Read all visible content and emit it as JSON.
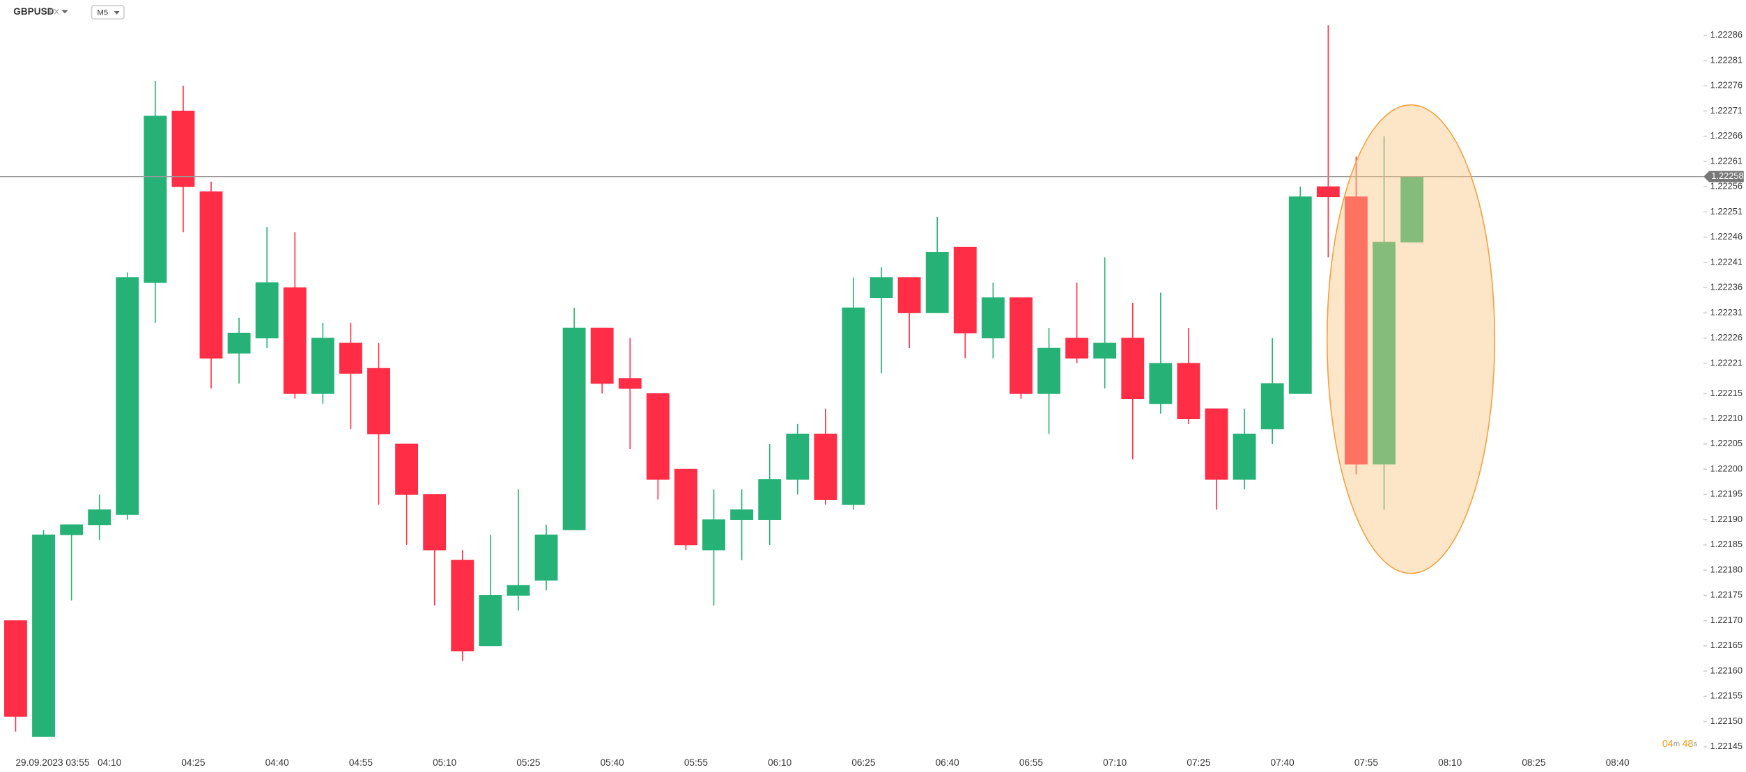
{
  "header": {
    "symbol": "GBPUSD",
    "market": "FX",
    "timeframe": "M5"
  },
  "chart_data": {
    "type": "candlestick",
    "date_label": "29.09.2023 03:55",
    "xlabels": [
      "04:10",
      "04:25",
      "04:40",
      "04:55",
      "05:10",
      "05:25",
      "05:40",
      "05:55",
      "06:10",
      "06:25",
      "06:40",
      "06:55",
      "07:10",
      "07:25",
      "07:40",
      "07:55",
      "08:10",
      "08:25",
      "08:40"
    ],
    "open": [
      1.2217,
      1.22147,
      1.22187,
      1.22189,
      1.22191,
      1.22237,
      1.22271,
      1.22255,
      1.22223,
      1.22226,
      1.22236,
      1.22215,
      1.22225,
      1.2222,
      1.22205,
      1.22195,
      1.22182,
      1.22165,
      1.22175,
      1.22178,
      1.22188,
      1.22228,
      1.22218,
      1.22215,
      1.222,
      1.22184,
      1.2219,
      1.2219,
      1.22198,
      1.22207,
      1.22193,
      1.22234,
      1.22238,
      1.22231,
      1.22244,
      1.22226,
      1.22234,
      1.22215,
      1.22226,
      1.22222,
      1.22226,
      1.22213,
      1.22221,
      1.22212,
      1.22198,
      1.22208,
      1.22215,
      1.22256,
      1.22254,
      1.22201,
      1.22245
    ],
    "high": [
      1.2217,
      1.22188,
      1.22189,
      1.22195,
      1.22239,
      1.22277,
      1.22276,
      1.22257,
      1.2223,
      1.22248,
      1.22247,
      1.22229,
      1.22229,
      1.22225,
      1.22205,
      1.22195,
      1.22184,
      1.22187,
      1.22196,
      1.22189,
      1.22232,
      1.22228,
      1.22226,
      1.22215,
      1.222,
      1.22196,
      1.22196,
      1.22205,
      1.22209,
      1.22212,
      1.22238,
      1.2224,
      1.22238,
      1.2225,
      1.22244,
      1.22237,
      1.22234,
      1.22228,
      1.22237,
      1.22242,
      1.22233,
      1.22235,
      1.22228,
      1.22212,
      1.22212,
      1.22226,
      1.22256,
      1.22288,
      1.22262,
      1.22266,
      1.22258
    ],
    "low": [
      1.22148,
      1.22147,
      1.22174,
      1.22186,
      1.2219,
      1.22229,
      1.22247,
      1.22216,
      1.22217,
      1.22224,
      1.22214,
      1.22213,
      1.22208,
      1.22193,
      1.22185,
      1.22173,
      1.22162,
      1.22165,
      1.22172,
      1.22176,
      1.22188,
      1.22215,
      1.22204,
      1.22194,
      1.22184,
      1.22173,
      1.22182,
      1.22185,
      1.22195,
      1.22193,
      1.22192,
      1.22219,
      1.22224,
      1.22231,
      1.22222,
      1.22222,
      1.22214,
      1.22207,
      1.22221,
      1.22216,
      1.22202,
      1.22211,
      1.22209,
      1.22192,
      1.22196,
      1.22205,
      1.22215,
      1.22242,
      1.22199,
      1.22192,
      1.22245
    ],
    "close": [
      1.22151,
      1.22187,
      1.22189,
      1.22192,
      1.22238,
      1.2227,
      1.22256,
      1.22222,
      1.22227,
      1.22237,
      1.22215,
      1.22226,
      1.22219,
      1.22207,
      1.22195,
      1.22184,
      1.22164,
      1.22175,
      1.22177,
      1.22187,
      1.22228,
      1.22217,
      1.22216,
      1.22198,
      1.22185,
      1.2219,
      1.22192,
      1.22198,
      1.22207,
      1.22194,
      1.22232,
      1.22238,
      1.22231,
      1.22243,
      1.22227,
      1.22234,
      1.22215,
      1.22224,
      1.22222,
      1.22225,
      1.22214,
      1.22221,
      1.2221,
      1.22198,
      1.22207,
      1.22217,
      1.22254,
      1.22254,
      1.22201,
      1.22245,
      1.22258
    ],
    "up_color": "#26b276",
    "down_color": "#ff2d46",
    "ylim": [
      1.2214,
      1.22293
    ],
    "yticks": [
      1.22286,
      1.22281,
      1.22276,
      1.22271,
      1.22266,
      1.22261,
      1.22256,
      1.22251,
      1.22246,
      1.22241,
      1.22236,
      1.22231,
      1.22226,
      1.22221,
      1.22215,
      {
        "value": 1.2221,
        "label": "1.22210"
      },
      1.22205,
      {
        "value": 1.222,
        "label": "1.22200"
      },
      1.22195,
      {
        "value": 1.2219,
        "label": "1.22190"
      },
      1.22185,
      {
        "value": 1.2218,
        "label": "1.22180"
      },
      1.22175,
      {
        "value": 1.2217,
        "label": "1.22170"
      },
      1.22165,
      {
        "value": 1.2216,
        "label": "1.22160"
      },
      1.22155,
      {
        "value": 1.2215,
        "label": "1.22150"
      },
      1.22145
    ],
    "current_price": 1.22258,
    "countdown": {
      "minutes": "04",
      "m": "m",
      "seconds": "48",
      "s": "s"
    }
  }
}
